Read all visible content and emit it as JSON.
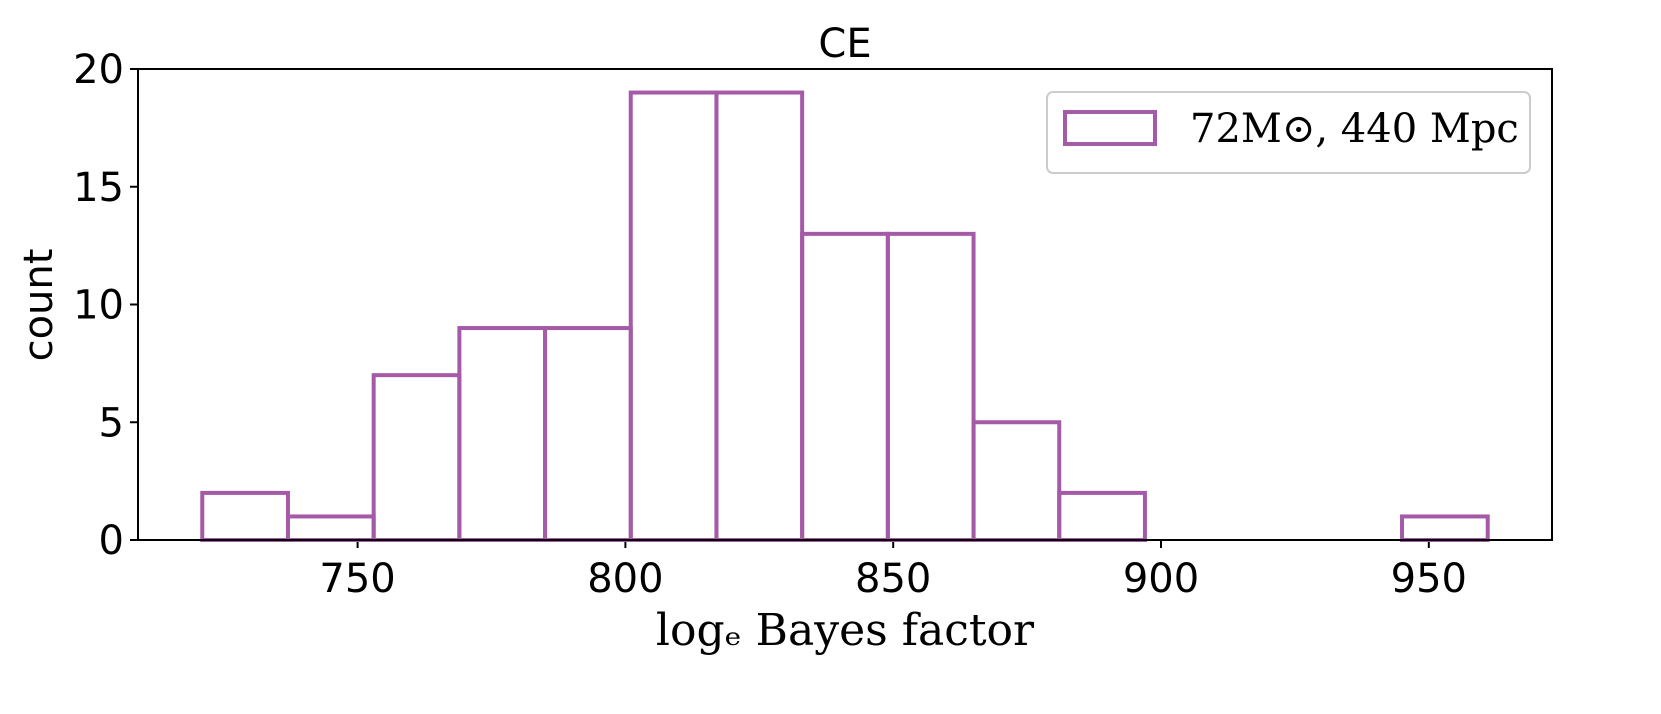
{
  "chart_data": {
    "type": "histogram",
    "title": "CE",
    "xlabel": "logₑ Bayes factor",
    "ylabel": "count",
    "bins": [
      721,
      737,
      753,
      769,
      785,
      801,
      817,
      833,
      849,
      865,
      881,
      897,
      913,
      929,
      945,
      961
    ],
    "series": [
      {
        "name": "72M⊙, 440 Mpc",
        "color": "#a55aa8",
        "values": [
          2,
          1,
          7,
          9,
          9,
          19,
          19,
          13,
          13,
          5,
          2,
          0,
          0,
          0,
          1
        ]
      }
    ],
    "xlim": [
      709,
      973
    ],
    "xticks": [
      750,
      800,
      850,
      900,
      950
    ],
    "ylim": [
      0,
      20
    ],
    "yticks": [
      0,
      5,
      10,
      15,
      20
    ],
    "legend": "upper right",
    "grid": false
  }
}
